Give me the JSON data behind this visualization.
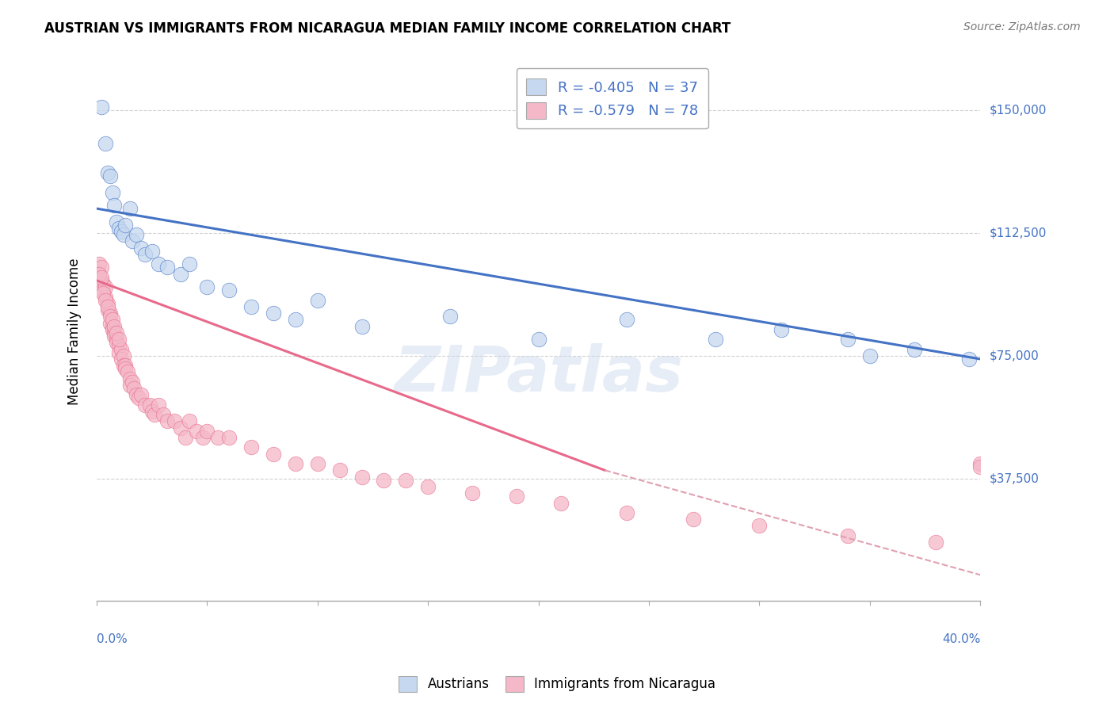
{
  "title": "AUSTRIAN VS IMMIGRANTS FROM NICARAGUA MEDIAN FAMILY INCOME CORRELATION CHART",
  "source": "Source: ZipAtlas.com",
  "ylabel": "Median Family Income",
  "yticks": [
    0,
    37500,
    75000,
    112500,
    150000
  ],
  "ytick_labels": [
    "",
    "$37,500",
    "$75,000",
    "$112,500",
    "$150,000"
  ],
  "xlim": [
    0.0,
    0.4
  ],
  "ylim": [
    0,
    165000
  ],
  "watermark": "ZIPatlas",
  "austrians_color": "#c5d8f0",
  "nicaragua_color": "#f4b8c8",
  "blue_line_color": "#4472c4",
  "pink_line_color": "#e8698a",
  "dashed_line_color": "#e0a0b0",
  "austrians_x": [
    0.002,
    0.004,
    0.005,
    0.006,
    0.007,
    0.008,
    0.009,
    0.01,
    0.011,
    0.012,
    0.013,
    0.015,
    0.016,
    0.018,
    0.02,
    0.022,
    0.025,
    0.028,
    0.032,
    0.038,
    0.042,
    0.05,
    0.06,
    0.07,
    0.08,
    0.09,
    0.1,
    0.12,
    0.16,
    0.2,
    0.24,
    0.28,
    0.31,
    0.34,
    0.35,
    0.37,
    0.395
  ],
  "austrians_y": [
    151000,
    140000,
    131000,
    130000,
    125000,
    121000,
    116000,
    114000,
    113000,
    112000,
    115000,
    120000,
    110000,
    112000,
    108000,
    106000,
    107000,
    103000,
    102000,
    100000,
    103000,
    96000,
    95000,
    90000,
    88000,
    86000,
    92000,
    84000,
    87000,
    80000,
    86000,
    80000,
    83000,
    80000,
    75000,
    77000,
    74000
  ],
  "nicaragua_x": [
    0.001,
    0.002,
    0.002,
    0.003,
    0.003,
    0.004,
    0.004,
    0.005,
    0.005,
    0.006,
    0.006,
    0.007,
    0.007,
    0.008,
    0.008,
    0.009,
    0.009,
    0.01,
    0.01,
    0.011,
    0.011,
    0.012,
    0.012,
    0.013,
    0.013,
    0.014,
    0.015,
    0.015,
    0.016,
    0.017,
    0.018,
    0.019,
    0.02,
    0.022,
    0.024,
    0.025,
    0.026,
    0.028,
    0.03,
    0.032,
    0.035,
    0.038,
    0.04,
    0.042,
    0.045,
    0.048,
    0.05,
    0.055,
    0.06,
    0.07,
    0.08,
    0.09,
    0.1,
    0.11,
    0.12,
    0.13,
    0.14,
    0.15,
    0.17,
    0.19,
    0.21,
    0.24,
    0.27,
    0.3,
    0.34,
    0.38,
    0.4,
    0.4,
    0.001,
    0.002,
    0.003,
    0.004,
    0.005,
    0.006,
    0.007,
    0.008,
    0.009,
    0.01
  ],
  "nicaragua_y": [
    103000,
    102000,
    98000,
    97000,
    95000,
    93000,
    96000,
    91000,
    89000,
    88000,
    85000,
    84000,
    83000,
    82000,
    81000,
    80000,
    79000,
    78000,
    76000,
    77000,
    74000,
    75000,
    72000,
    72000,
    71000,
    70000,
    68000,
    66000,
    67000,
    65000,
    63000,
    62000,
    63000,
    60000,
    60000,
    58000,
    57000,
    60000,
    57000,
    55000,
    55000,
    53000,
    50000,
    55000,
    52000,
    50000,
    52000,
    50000,
    50000,
    47000,
    45000,
    42000,
    42000,
    40000,
    38000,
    37000,
    37000,
    35000,
    33000,
    32000,
    30000,
    27000,
    25000,
    23000,
    20000,
    18000,
    42000,
    41000,
    100000,
    99000,
    94000,
    92000,
    90000,
    87000,
    86000,
    84000,
    82000,
    80000
  ],
  "blue_line_x": [
    0.0,
    0.4
  ],
  "blue_line_y": [
    120000,
    74000
  ],
  "pink_line_x": [
    0.0,
    0.23
  ],
  "pink_line_y": [
    98000,
    40000
  ],
  "dashed_line_x": [
    0.23,
    0.4
  ],
  "dashed_line_y": [
    40000,
    8000
  ]
}
